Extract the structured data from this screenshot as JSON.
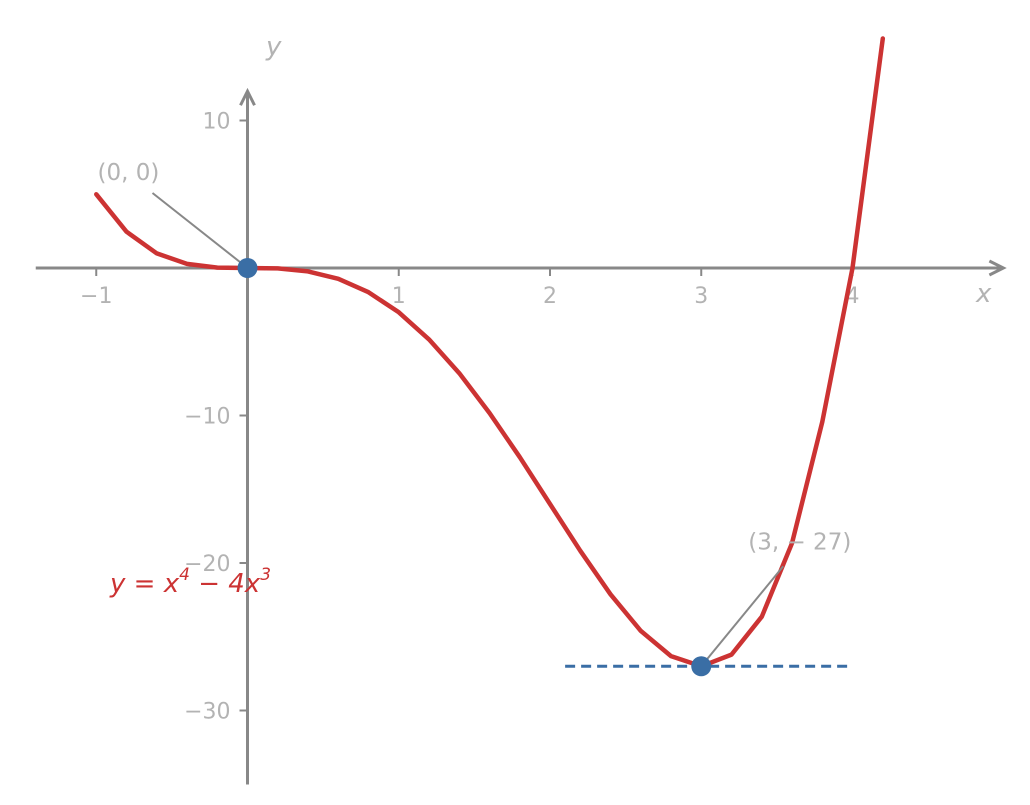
{
  "chart_data": {
    "type": "line",
    "xlabel": "x",
    "ylabel": "y",
    "xlim": [
      -1.4,
      4.7
    ],
    "ylim": [
      -34,
      13
    ],
    "x_ticks": [
      {
        "value": -1,
        "label": "−1"
      },
      {
        "value": 1,
        "label": "1"
      },
      {
        "value": 2,
        "label": "2"
      },
      {
        "value": 3,
        "label": "3"
      },
      {
        "value": 4,
        "label": "4"
      }
    ],
    "y_ticks": [
      {
        "value": 10,
        "label": "10"
      },
      {
        "value": -10,
        "label": "−10"
      },
      {
        "value": -20,
        "label": "−20"
      },
      {
        "value": -30,
        "label": "−30"
      }
    ],
    "series": [
      {
        "name": "y = x^4 − 4x^3",
        "color": "#cc3333",
        "x": [
          -1.0,
          -0.8,
          -0.6,
          -0.4,
          -0.2,
          0.0,
          0.2,
          0.4,
          0.6,
          0.8,
          1.0,
          1.2,
          1.4,
          1.6,
          1.8,
          2.0,
          2.2,
          2.4,
          2.6,
          2.8,
          3.0,
          3.2,
          3.4,
          3.6,
          3.8,
          4.0,
          4.2
        ],
        "y": [
          5.0,
          2.46,
          0.99,
          0.28,
          0.03,
          0.0,
          -0.03,
          -0.23,
          -0.73,
          -1.64,
          -3.0,
          -4.84,
          -7.13,
          -9.83,
          -12.83,
          -16.0,
          -19.17,
          -22.12,
          -24.6,
          -26.31,
          -27.0,
          -26.21,
          -23.64,
          -18.66,
          -10.43,
          0.0,
          15.56
        ]
      }
    ],
    "function_label": {
      "y": "y",
      "eq": " = ",
      "x1": "x",
      "exp1": "4",
      "minus": " − 4",
      "x2": "x",
      "exp2": "3"
    },
    "points": [
      {
        "x": 0,
        "y": 0,
        "label": "(0, 0)",
        "color": "#3a6ea5"
      },
      {
        "x": 3,
        "y": -27,
        "label": "(3, − 27)",
        "color": "#3a6ea5"
      }
    ],
    "tangent_lines": [
      {
        "y": 0,
        "x_from": -0.7,
        "x_to": 1.0,
        "color": "#bcc6d6"
      },
      {
        "y": -27,
        "x_from": 2.1,
        "x_to": 4.0,
        "color": "#3a6ea5"
      }
    ],
    "colors": {
      "axis": "#888888",
      "curve": "#cc3333",
      "point": "#3a6ea5"
    },
    "grid": false,
    "legend": "none"
  }
}
